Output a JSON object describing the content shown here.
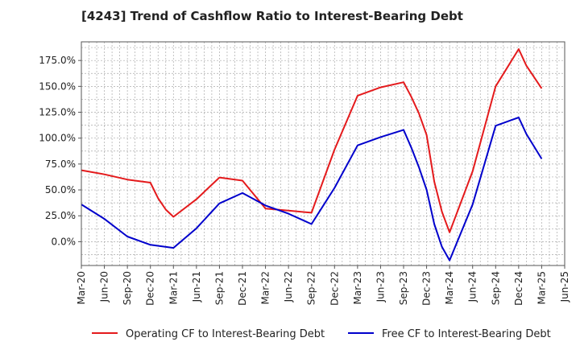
{
  "chart_data": {
    "type": "line",
    "title": "[4243]  Trend of Cashflow Ratio to Interest-Bearing Debt",
    "xlabel": "",
    "ylabel": "",
    "x_ticks": [
      "Mar-20",
      "Jun-20",
      "Sep-20",
      "Dec-20",
      "Mar-21",
      "Jun-21",
      "Sep-21",
      "Dec-21",
      "Mar-22",
      "Jun-22",
      "Sep-22",
      "Dec-22",
      "Mar-23",
      "Jun-23",
      "Sep-23",
      "Dec-23",
      "Mar-24",
      "Jun-24",
      "Sep-24",
      "Dec-24",
      "Mar-25",
      "Jun-25"
    ],
    "y_ticks": [
      "0.0%",
      "25.0%",
      "50.0%",
      "75.0%",
      "100.0%",
      "125.0%",
      "150.0%",
      "175.0%"
    ],
    "y_tick_values": [
      0,
      25,
      50,
      75,
      100,
      125,
      150,
      175
    ],
    "ylim": [
      -23,
      193
    ],
    "grid": true,
    "legend_position": "bottom",
    "series": [
      {
        "name": "Operating CF to Interest-Bearing Debt",
        "color": "#e41a1c",
        "points": [
          [
            "Mar-20",
            69
          ],
          [
            "Jun-20",
            65
          ],
          [
            "Sep-20",
            60
          ],
          [
            "Dec-20",
            57
          ],
          [
            "Jan-21",
            42
          ],
          [
            "Feb-21",
            31
          ],
          [
            "Mar-21",
            24
          ],
          [
            "Jun-21",
            41
          ],
          [
            "Sep-21",
            62
          ],
          [
            "Dec-21",
            59
          ],
          [
            "Mar-22",
            32
          ],
          [
            "Jun-22",
            30
          ],
          [
            "Sep-22",
            28
          ],
          [
            "Dec-22",
            89
          ],
          [
            "Mar-23",
            141
          ],
          [
            "Jun-23",
            149
          ],
          [
            "Sep-23",
            154
          ],
          [
            "Oct-23",
            140
          ],
          [
            "Nov-23",
            124
          ],
          [
            "Dec-23",
            103
          ],
          [
            "Jan-24",
            58
          ],
          [
            "Feb-24",
            29
          ],
          [
            "Mar-24",
            9
          ],
          [
            "Jun-24",
            68
          ],
          [
            "Sep-24",
            150
          ],
          [
            "Dec-24",
            186
          ],
          [
            "Jan-25",
            170
          ],
          [
            "Mar-25",
            148
          ]
        ]
      },
      {
        "name": "Free CF to Interest-Bearing Debt",
        "color": "#0000cc",
        "points": [
          [
            "Mar-20",
            36
          ],
          [
            "Jun-20",
            22
          ],
          [
            "Sep-20",
            5
          ],
          [
            "Dec-20",
            -3
          ],
          [
            "Mar-21",
            -6
          ],
          [
            "Jun-21",
            13
          ],
          [
            "Sep-21",
            37
          ],
          [
            "Dec-21",
            47
          ],
          [
            "Mar-22",
            35
          ],
          [
            "Jun-22",
            27
          ],
          [
            "Sep-22",
            17
          ],
          [
            "Dec-22",
            52
          ],
          [
            "Mar-23",
            93
          ],
          [
            "Jun-23",
            101
          ],
          [
            "Sep-23",
            108
          ],
          [
            "Oct-23",
            91
          ],
          [
            "Nov-23",
            72
          ],
          [
            "Dec-23",
            50
          ],
          [
            "Jan-24",
            17
          ],
          [
            "Feb-24",
            -5
          ],
          [
            "Mar-24",
            -18
          ],
          [
            "Jun-24",
            36
          ],
          [
            "Sep-24",
            112
          ],
          [
            "Dec-24",
            120
          ],
          [
            "Jan-25",
            104
          ],
          [
            "Mar-25",
            80
          ]
        ]
      }
    ]
  }
}
